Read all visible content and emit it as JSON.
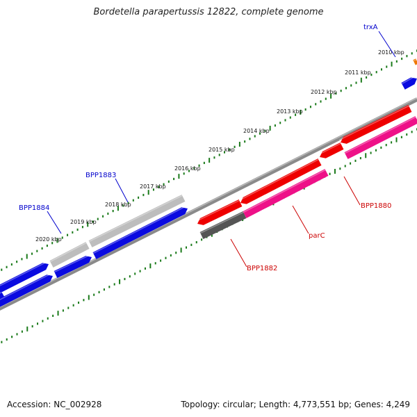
{
  "title": "Bordetella parapertussis 12822, complete genome",
  "footer": {
    "accession": "Accession: NC_002928",
    "summary": "Topology: circular; Length: 4,773,551 bp; Genes: 4,249"
  },
  "colors": {
    "blue_gene": "#0a0ae0",
    "grey_gene": "#bdbdbd",
    "red_gene": "#ee0000",
    "pink_gene": "#ee1188",
    "dark_gene": "#555555",
    "orange_gene": "#ee7700",
    "backbone": "#8a8a8a",
    "tick_green": "#1a7a1a",
    "label_blue": "#0000cc",
    "label_red": "#cc0000"
  },
  "kbp_ticks": [
    "2010 kbp",
    "2011 kbp",
    "2012 kbp",
    "2013 kbp",
    "2014 kbp",
    "2015 kbp",
    "2016 kbp",
    "2017 kbp",
    "2018 kbp",
    "2019 kbp",
    "2020 kbp"
  ],
  "gene_labels": [
    {
      "name": "trxA",
      "color": "blue"
    },
    {
      "name": "BPP1883",
      "color": "blue"
    },
    {
      "name": "BPP1884",
      "color": "blue"
    },
    {
      "name": "BPP1880",
      "color": "red"
    },
    {
      "name": "parC",
      "color": "red"
    },
    {
      "name": "BPP1882",
      "color": "red"
    }
  ]
}
